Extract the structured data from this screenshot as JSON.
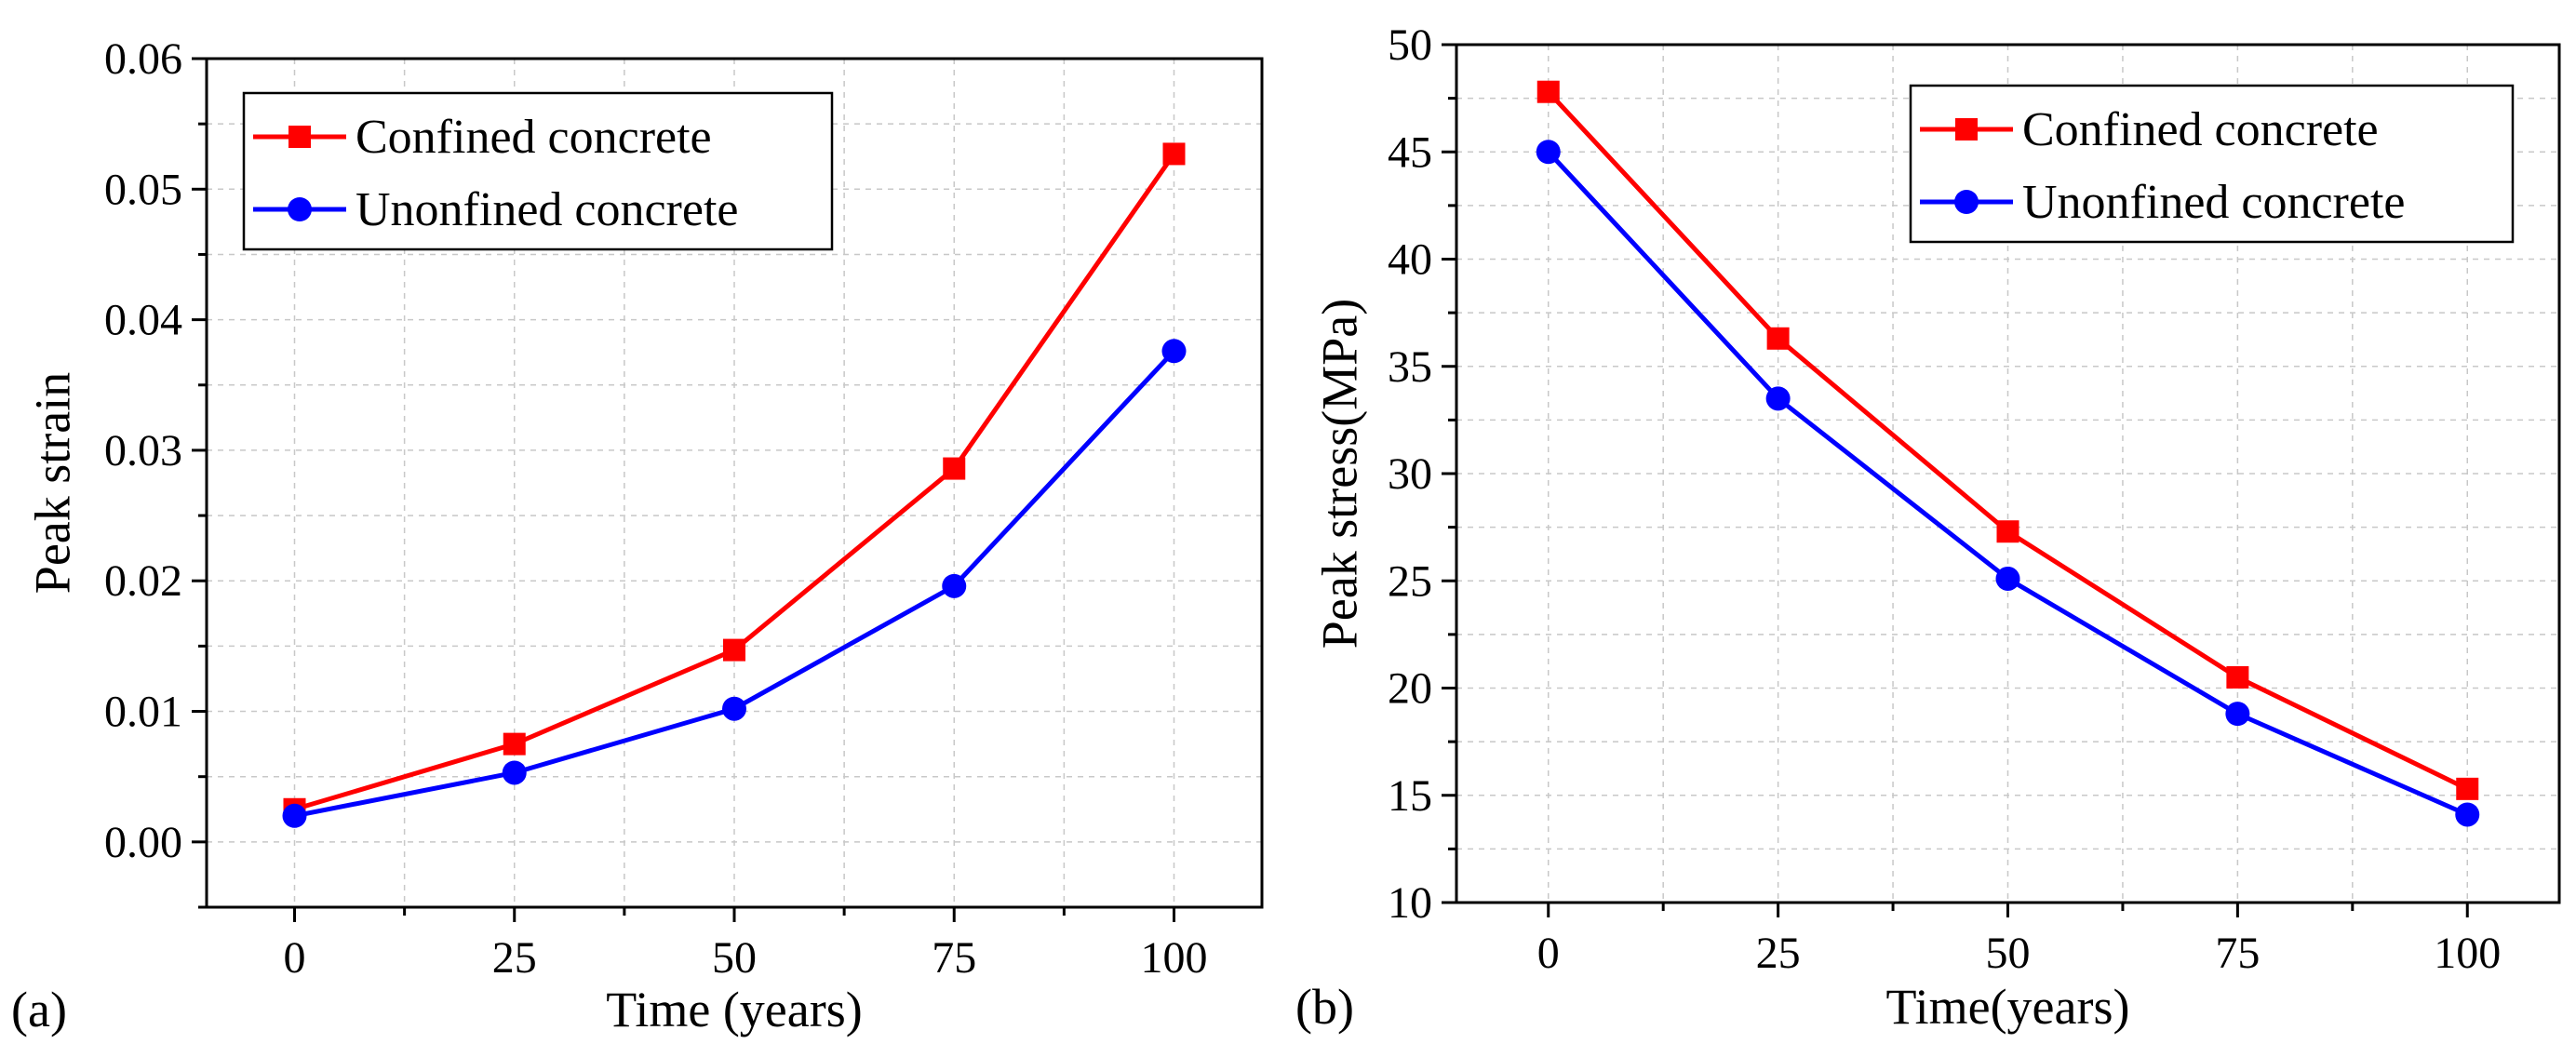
{
  "colors": {
    "confined": "#ff0000",
    "unconfined": "#0000ff",
    "axis": "#000000",
    "grid": "#c8c8c8"
  },
  "chart_data": [
    {
      "type": "line",
      "panel_label": "(a)",
      "title": "",
      "xlabel": "Time (years)",
      "ylabel": "Peak strain",
      "xlim": [
        -10,
        110
      ],
      "ylim": [
        -0.005,
        0.06
      ],
      "xticks": [
        0,
        25,
        50,
        75,
        100
      ],
      "xtick_labels": [
        "0",
        "25",
        "50",
        "75",
        "100"
      ],
      "yticks": [
        0,
        0.01,
        0.02,
        0.03,
        0.04,
        0.05,
        0.06
      ],
      "ytick_labels": [
        "0.00",
        "0.01",
        "0.02",
        "0.03",
        "0.04",
        "0.05",
        "0.06"
      ],
      "grid": true,
      "legend_position": "top-left",
      "x": [
        0,
        25,
        50,
        75,
        100
      ],
      "series": [
        {
          "name": "Confined concrete",
          "marker": "square",
          "color_key": "confined",
          "values": [
            0.0025,
            0.0075,
            0.0147,
            0.0286,
            0.0527
          ]
        },
        {
          "name": "Unonfined concrete",
          "marker": "circle",
          "color_key": "unconfined",
          "values": [
            0.002,
            0.0053,
            0.0102,
            0.0196,
            0.0376
          ]
        }
      ]
    },
    {
      "type": "line",
      "panel_label": "(b)",
      "title": "",
      "xlabel": "Time(years)",
      "ylabel": "Peak stress(MPa)",
      "xlim": [
        -10,
        110
      ],
      "ylim": [
        10,
        50
      ],
      "xticks": [
        0,
        25,
        50,
        75,
        100
      ],
      "xtick_labels": [
        "0",
        "25",
        "50",
        "75",
        "100"
      ],
      "yticks": [
        10,
        15,
        20,
        25,
        30,
        35,
        40,
        45,
        50
      ],
      "ytick_labels": [
        "10",
        "15",
        "20",
        "25",
        "30",
        "35",
        "40",
        "45",
        "50"
      ],
      "grid": true,
      "legend_position": "top-right",
      "x": [
        0,
        25,
        50,
        75,
        100
      ],
      "series": [
        {
          "name": "Confined concrete",
          "marker": "square",
          "color_key": "confined",
          "values": [
            47.8,
            36.3,
            27.3,
            20.5,
            15.3
          ]
        },
        {
          "name": "Unonfined concrete",
          "marker": "circle",
          "color_key": "unconfined",
          "values": [
            45.0,
            33.5,
            25.1,
            18.8,
            14.1
          ]
        }
      ]
    }
  ]
}
